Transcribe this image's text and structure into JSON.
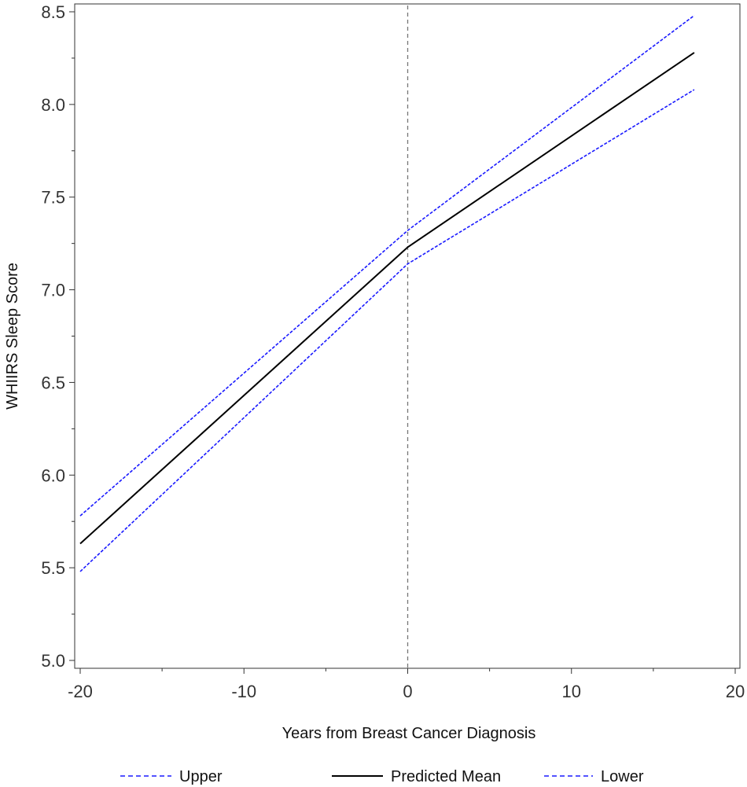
{
  "chart_data": {
    "type": "line",
    "xlabel": "Years from Breast Cancer Diagnosis",
    "ylabel": "WHIIRS Sleep Score",
    "xlim": [
      -20,
      20
    ],
    "ylim": [
      5.0,
      8.5
    ],
    "x_ticks": [
      -20,
      -10,
      0,
      10,
      20
    ],
    "x_tick_labels": [
      "-20",
      "-10",
      "0",
      "10",
      "20"
    ],
    "x_minor_ticks": [
      -15,
      -5,
      5,
      15
    ],
    "y_ticks": [
      5.0,
      5.5,
      6.0,
      6.5,
      7.0,
      7.5,
      8.0,
      8.5
    ],
    "y_tick_labels": [
      "5.0",
      "5.5",
      "6.0",
      "6.5",
      "7.0",
      "7.5",
      "8.0",
      "8.5"
    ],
    "reference_line_x": 0,
    "grid": false,
    "legend_position": "bottom",
    "series": [
      {
        "name": "Upper",
        "style": "dash",
        "color": "#1a1aff",
        "x": [
          -20,
          0,
          17.5
        ],
        "y": [
          5.78,
          7.32,
          8.48
        ]
      },
      {
        "name": "Predicted Mean",
        "style": "solid",
        "color": "#000000",
        "x": [
          -20,
          0,
          17.5
        ],
        "y": [
          5.63,
          7.23,
          8.28
        ]
      },
      {
        "name": "Lower",
        "style": "dash",
        "color": "#1a1aff",
        "x": [
          -20,
          0,
          17.5
        ],
        "y": [
          5.48,
          7.14,
          8.08
        ]
      }
    ]
  }
}
